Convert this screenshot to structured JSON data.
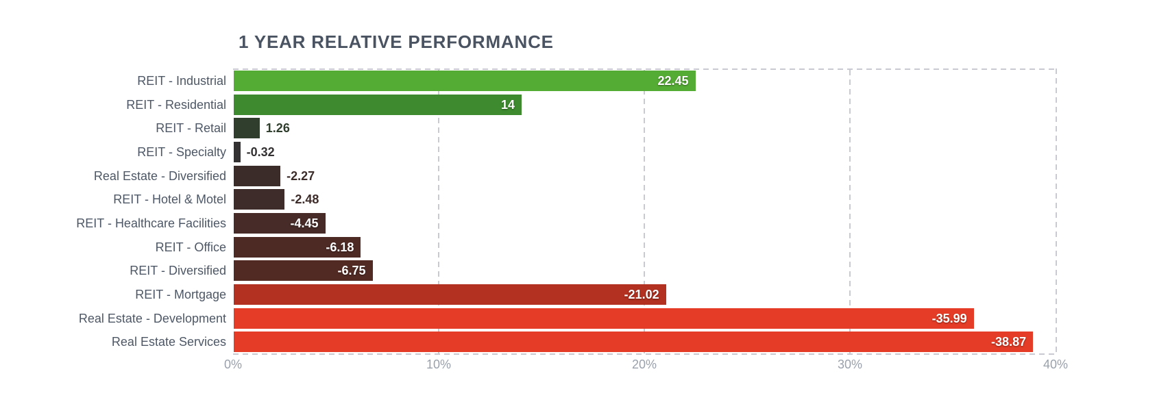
{
  "title": "1 YEAR RELATIVE PERFORMANCE",
  "chart_data": {
    "type": "bar",
    "orientation": "horizontal",
    "title": "1 YEAR RELATIVE PERFORMANCE",
    "note": "bar length encodes absolute value; color encodes sign/magnitude (green positive to red negative)",
    "categories": [
      "REIT - Industrial",
      "REIT - Residential",
      "REIT - Retail",
      "REIT - Specialty",
      "Real Estate - Diversified",
      "REIT - Hotel & Motel",
      "REIT - Healthcare Facilities",
      "REIT - Office",
      "REIT - Diversified",
      "REIT - Mortgage",
      "Real Estate - Development",
      "Real Estate Services"
    ],
    "values": [
      22.45,
      14,
      1.26,
      -0.32,
      -2.27,
      -2.48,
      -4.45,
      -6.18,
      -6.75,
      -21.02,
      -35.99,
      -38.87
    ],
    "value_labels": [
      "22.45",
      "14",
      "1.26",
      "-0.32",
      "-2.27",
      "-2.48",
      "-4.45",
      "-6.18",
      "-6.75",
      "-21.02",
      "-35.99",
      "-38.87"
    ],
    "bar_colors": [
      "#55ac34",
      "#3d8b2e",
      "#2f3e2d",
      "#343132",
      "#3b2c29",
      "#3d2c29",
      "#462b28",
      "#4e2a25",
      "#512a24",
      "#b23120",
      "#e43c26",
      "#e43c26"
    ],
    "label_inside": [
      true,
      true,
      false,
      false,
      false,
      false,
      true,
      true,
      true,
      true,
      true,
      true
    ],
    "x_ticks": [
      "0%",
      "10%",
      "20%",
      "30%",
      "40%"
    ],
    "x_tick_values": [
      0,
      10,
      20,
      30,
      40
    ],
    "xlim": [
      0,
      40
    ],
    "grid": true,
    "legend": "none"
  },
  "colors": {
    "title_text": "#4a5361",
    "category_text": "#4d5765",
    "tick_text": "#9aa1ab",
    "gridline": "#c9cad1",
    "background": "#ffffff",
    "inside_value_text": "#ffffff"
  }
}
